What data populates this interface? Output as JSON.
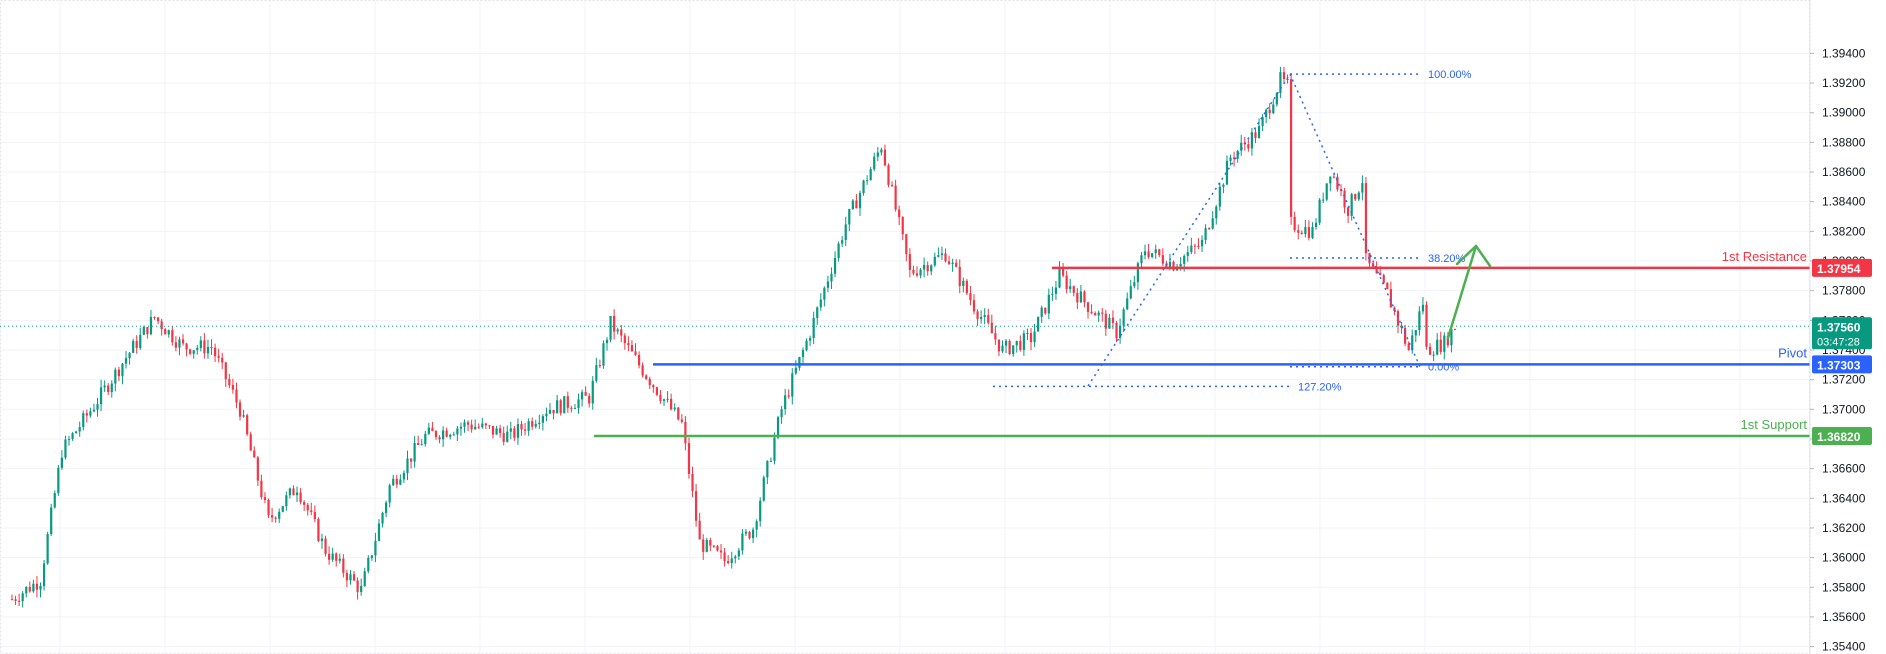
{
  "chart_data": {
    "type": "candlestick",
    "ylim": [
      1.3535,
      1.3976
    ],
    "y_ticks": [
      "1.35400",
      "1.35600",
      "1.35800",
      "1.36000",
      "1.36200",
      "1.36400",
      "1.36600",
      "1.36800",
      "1.37000",
      "1.37200",
      "1.37400",
      "1.37600",
      "1.37800",
      "1.38000",
      "1.38200",
      "1.38400",
      "1.38600",
      "1.38800",
      "1.39000",
      "1.39200",
      "1.39400"
    ],
    "grid": true,
    "current_price": {
      "label": "1.37560",
      "countdown": "03:47:28",
      "value": 1.3756
    },
    "levels": [
      {
        "name": "1st Resistance",
        "label": "1.37954",
        "value": 1.37954,
        "color": "#f23645"
      },
      {
        "name": "Pivot",
        "label": "1.37303",
        "value": 1.37303,
        "color": "#2962ff"
      },
      {
        "name": "1st Support",
        "label": "1.36820",
        "value": 1.3682,
        "color": "#4caf50"
      }
    ],
    "fib_levels": [
      {
        "label": "100.00%",
        "value": 1.3926
      },
      {
        "label": "38.20%",
        "value": 1.3802
      },
      {
        "label": "0.00%",
        "value": 1.37287
      },
      {
        "label": "127.20%",
        "value": 1.37155
      }
    ],
    "colors": {
      "up": "#089981",
      "down": "#f23645",
      "arrow": "#4caf50"
    },
    "anchors": [
      {
        "i": 0,
        "p": 1.3572
      },
      {
        "i": 8,
        "p": 1.3585
      },
      {
        "i": 14,
        "p": 1.3672
      },
      {
        "i": 24,
        "p": 1.3706
      },
      {
        "i": 32,
        "p": 1.3735
      },
      {
        "i": 40,
        "p": 1.3762
      },
      {
        "i": 48,
        "p": 1.3742
      },
      {
        "i": 56,
        "p": 1.3742
      },
      {
        "i": 64,
        "p": 1.37
      },
      {
        "i": 72,
        "p": 1.3625
      },
      {
        "i": 80,
        "p": 1.3648
      },
      {
        "i": 88,
        "p": 1.3605
      },
      {
        "i": 98,
        "p": 1.3578
      },
      {
        "i": 106,
        "p": 1.3648
      },
      {
        "i": 116,
        "p": 1.3682
      },
      {
        "i": 128,
        "p": 1.369
      },
      {
        "i": 140,
        "p": 1.3682
      },
      {
        "i": 150,
        "p": 1.37
      },
      {
        "i": 162,
        "p": 1.3708
      },
      {
        "i": 168,
        "p": 1.3758
      },
      {
        "i": 176,
        "p": 1.373
      },
      {
        "i": 188,
        "p": 1.369
      },
      {
        "i": 193,
        "p": 1.361
      },
      {
        "i": 200,
        "p": 1.3598
      },
      {
        "i": 208,
        "p": 1.362
      },
      {
        "i": 216,
        "p": 1.37
      },
      {
        "i": 224,
        "p": 1.3752
      },
      {
        "i": 234,
        "p": 1.3825
      },
      {
        "i": 244,
        "p": 1.3878
      },
      {
        "i": 252,
        "p": 1.3792
      },
      {
        "i": 262,
        "p": 1.3805
      },
      {
        "i": 270,
        "p": 1.377
      },
      {
        "i": 278,
        "p": 1.374
      },
      {
        "i": 286,
        "p": 1.3748
      },
      {
        "i": 294,
        "p": 1.379
      },
      {
        "i": 302,
        "p": 1.377
      },
      {
        "i": 310,
        "p": 1.3752
      },
      {
        "i": 318,
        "p": 1.3808
      },
      {
        "i": 326,
        "p": 1.3798
      },
      {
        "i": 334,
        "p": 1.3812
      },
      {
        "i": 342,
        "p": 1.387
      },
      {
        "i": 350,
        "p": 1.3888
      },
      {
        "i": 356,
        "p": 1.3922
      },
      {
        "i": 358,
        "p": 1.3918
      },
      {
        "i": 359,
        "p": 1.3825
      },
      {
        "i": 365,
        "p": 1.382
      },
      {
        "i": 370,
        "p": 1.3862
      },
      {
        "i": 375,
        "p": 1.3835
      },
      {
        "i": 379,
        "p": 1.3855
      },
      {
        "i": 380,
        "p": 1.38
      },
      {
        "i": 386,
        "p": 1.3778
      },
      {
        "i": 392,
        "p": 1.374
      },
      {
        "i": 396,
        "p": 1.3772
      },
      {
        "i": 397,
        "p": 1.374
      },
      {
        "i": 402,
        "p": 1.3745
      },
      {
        "i": 405,
        "p": 1.3756
      }
    ]
  }
}
